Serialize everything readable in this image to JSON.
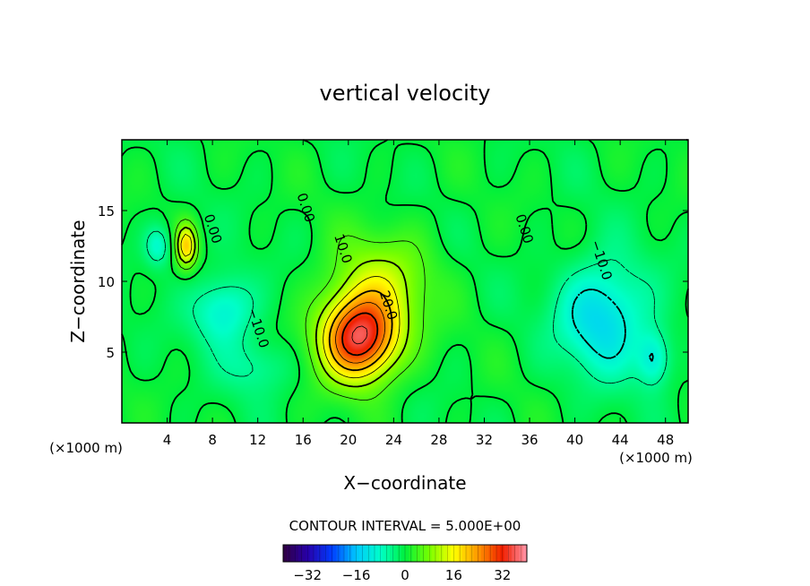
{
  "chart_data": {
    "type": "contour",
    "title": "vertical velocity",
    "xlabel": "X−coordinate",
    "ylabel": "Z−coordinate",
    "x_unit_left": "(×1000 m)",
    "x_unit_right": "(×1000 m)",
    "xlim": [
      0,
      50
    ],
    "ylim": [
      0,
      20
    ],
    "x_ticks": [
      4,
      8,
      12,
      16,
      20,
      24,
      28,
      32,
      36,
      40,
      44,
      48
    ],
    "y_ticks": [
      5,
      10,
      15
    ],
    "contour_interval_label": "CONTOUR INTERVAL = 5.000E+00",
    "colorbar": {
      "min": -40,
      "max": 40,
      "ticks": [
        -32,
        -16,
        0,
        16,
        32
      ]
    },
    "contour_labels": [
      {
        "text": "0.00",
        "x": 8.0,
        "y": 13.7
      },
      {
        "text": "0.00",
        "x": 16.2,
        "y": 15.2
      },
      {
        "text": "0.00",
        "x": 35.5,
        "y": 13.7
      },
      {
        "text": "10.0",
        "x": 19.5,
        "y": 12.3
      },
      {
        "text": "20.0",
        "x": 23.5,
        "y": 8.3
      },
      {
        "text": "−10.0",
        "x": 12.0,
        "y": 6.7
      },
      {
        "text": "−10.0",
        "x": 42.3,
        "y": 11.5
      }
    ],
    "features": [
      {
        "kind": "updraft",
        "x": 21,
        "z": 6,
        "peak": 35,
        "sx": 3.4,
        "sz": 3.0
      },
      {
        "kind": "updraft",
        "x": 23,
        "z": 10,
        "peak": 10,
        "sx": 4.5,
        "sz": 3.5
      },
      {
        "kind": "updraft",
        "x": 5.7,
        "z": 12.5,
        "peak": 18,
        "sx": 0.9,
        "sz": 1.5
      },
      {
        "kind": "downdraft",
        "x": 42.5,
        "z": 7.5,
        "peak": -14,
        "sx": 4.0,
        "sz": 4.0
      },
      {
        "kind": "downdraft",
        "x": 47,
        "z": 4.5,
        "peak": -10,
        "sx": 1.5,
        "sz": 2.0
      },
      {
        "kind": "downdraft",
        "x": 9,
        "z": 8,
        "peak": -11,
        "sx": 2.8,
        "sz": 2.5
      },
      {
        "kind": "downdraft",
        "x": 3.2,
        "z": 12.5,
        "peak": -9,
        "sx": 1.2,
        "sz": 1.5
      },
      {
        "kind": "downdraft",
        "x": 12,
        "z": 4,
        "peak": -6,
        "sx": 3.0,
        "sz": 2.0
      }
    ]
  }
}
